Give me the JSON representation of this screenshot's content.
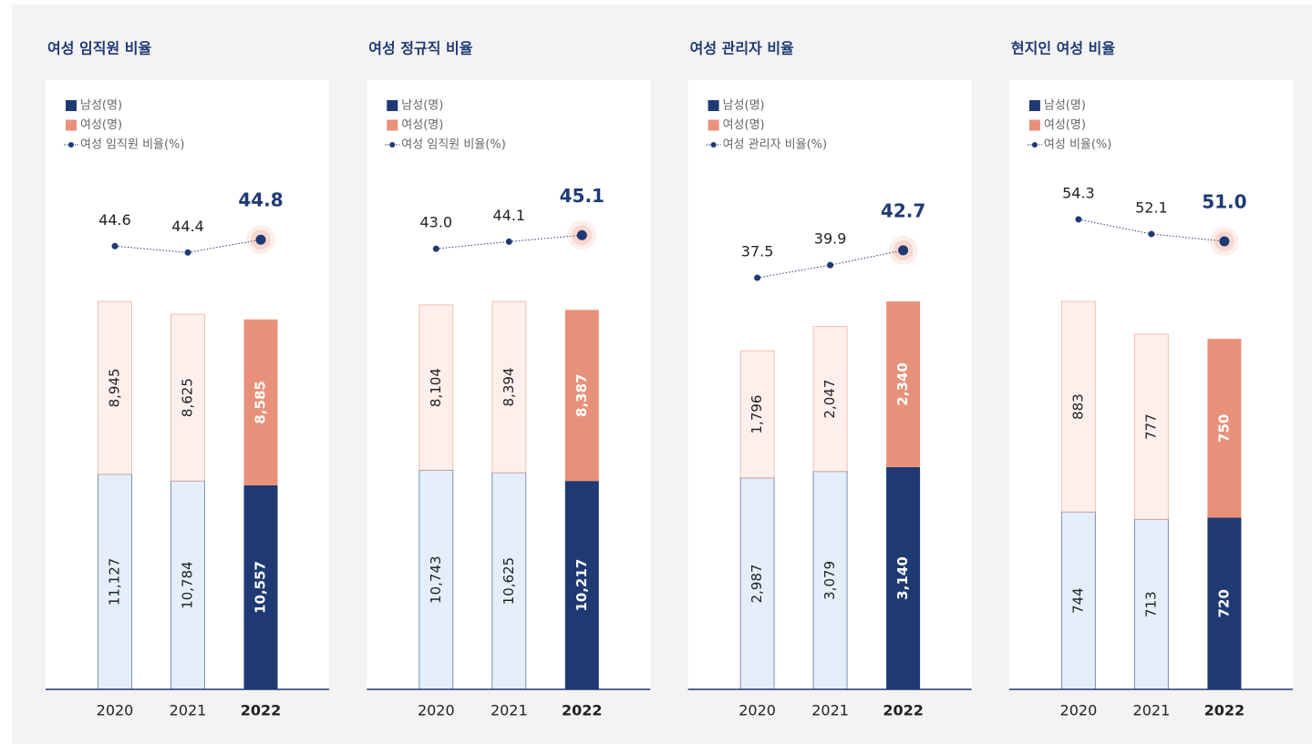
{
  "chart_data": [
    {
      "type": "bar",
      "title": "여성 임직원 비율",
      "categories": [
        "2020",
        "2021",
        "2022"
      ],
      "series": [
        {
          "name": "남성(명)",
          "color": "#1f3a73",
          "colors": [
            "#e3eef9",
            "#e3eef9",
            "#1f3a73"
          ],
          "values": [
            11127,
            10784,
            10557
          ],
          "value_labels": [
            "11,127",
            "10,784",
            "10,557"
          ]
        },
        {
          "name": "여성(명)",
          "color": "#e8917a",
          "colors": [
            "#fdf0ec",
            "#fdf0ec",
            "#e8917a"
          ],
          "values": [
            8945,
            8625,
            8585
          ],
          "value_labels": [
            "8,945",
            "8,625",
            "8,585"
          ]
        },
        {
          "name": "여성 임직원 비율(%)",
          "type": "line",
          "axis": "y2",
          "color": "#1f3a73",
          "values": [
            44.6,
            44.4,
            44.8
          ],
          "value_labels": [
            "44.6",
            "44.4",
            "44.8"
          ]
        }
      ],
      "y2lim": [
        42.9,
        46.6
      ]
    },
    {
      "type": "bar",
      "title": "여성 정규직 비율",
      "categories": [
        "2020",
        "2021",
        "2022"
      ],
      "series": [
        {
          "name": "남성(명)",
          "color": "#1f3a73",
          "colors": [
            "#e3eef9",
            "#e3eef9",
            "#1f3a73"
          ],
          "values": [
            10743,
            10625,
            10217
          ],
          "value_labels": [
            "10,743",
            "10,625",
            "10,217"
          ]
        },
        {
          "name": "여성(명)",
          "color": "#e8917a",
          "colors": [
            "#fdf0ec",
            "#fdf0ec",
            "#e8917a"
          ],
          "values": [
            8104,
            8394,
            8387
          ],
          "value_labels": [
            "8,104",
            "8,394",
            "8,387"
          ]
        },
        {
          "name": "여성 임직원 비율(%)",
          "type": "line",
          "axis": "y2",
          "color": "#1f3a73",
          "values": [
            43.0,
            44.1,
            45.1
          ],
          "value_labels": [
            "43.0",
            "44.1",
            "45.1"
          ]
        }
      ],
      "y2lim": [
        35.0,
        53.3
      ]
    },
    {
      "type": "bar",
      "title": "여성 관리자 비율",
      "categories": [
        "2020",
        "2021",
        "2022"
      ],
      "series": [
        {
          "name": "남성(명)",
          "color": "#1f3a73",
          "colors": [
            "#e3eef9",
            "#e3eef9",
            "#1f3a73"
          ],
          "values": [
            2987,
            3079,
            3140
          ],
          "value_labels": [
            "2,987",
            "3,079",
            "3,140"
          ]
        },
        {
          "name": "여성(명)",
          "color": "#e8917a",
          "colors": [
            "#fdf0ec",
            "#fdf0ec",
            "#e8917a"
          ],
          "values": [
            1796,
            2047,
            2340
          ],
          "value_labels": [
            "1,796",
            "2,047",
            "2,340"
          ]
        },
        {
          "name": "여성 관리자 비율(%)",
          "type": "line",
          "axis": "y2",
          "color": "#1f3a73",
          "values": [
            37.5,
            39.9,
            42.7
          ],
          "value_labels": [
            "37.5",
            "39.9",
            "42.7"
          ]
        }
      ],
      "y2lim": [
        33.2,
        55.6
      ]
    },
    {
      "type": "bar",
      "title": "현지인 여성 비율",
      "categories": [
        "2020",
        "2021",
        "2022"
      ],
      "series": [
        {
          "name": "남성(명)",
          "color": "#1f3a73",
          "colors": [
            "#e3eef9",
            "#e3eef9",
            "#1f3a73"
          ],
          "values": [
            744,
            713,
            720
          ]
        },
        {
          "name": "여성(명)",
          "color": "#e8917a",
          "colors": [
            "#fdf0ec",
            "#fdf0ec",
            "#e8917a"
          ],
          "values": [
            883,
            777,
            750
          ]
        },
        {
          "name": "여성 비율(%)",
          "type": "line",
          "axis": "y2",
          "color": "#1f3a73",
          "values": [
            54.3,
            52.1,
            51.0
          ],
          "value_labels": [
            "54.3",
            "52.1",
            "51.0"
          ]
        }
      ],
      "y2lim": [
        42.1,
        59.9
      ]
    }
  ]
}
